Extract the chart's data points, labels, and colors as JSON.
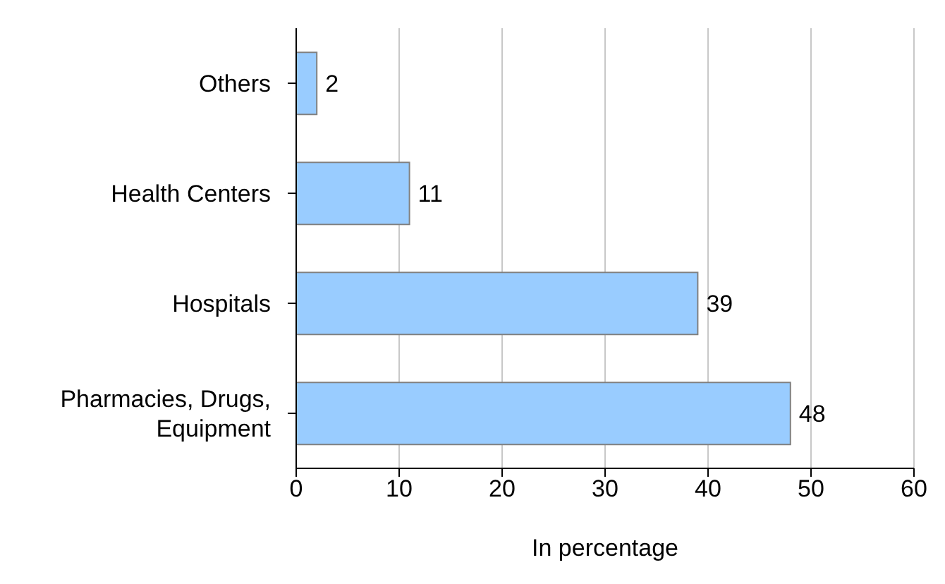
{
  "chart_data": {
    "type": "bar",
    "orientation": "horizontal",
    "categories": [
      "Others",
      "Health Centers",
      "Hospitals",
      "Pharmacies, Drugs, Equipment"
    ],
    "values": [
      2,
      11,
      39,
      48
    ],
    "color": "#99ccff",
    "xlim": [
      0,
      60
    ],
    "xticks": [
      0,
      10,
      20,
      30,
      40,
      50,
      60
    ],
    "xlabel": "In percentage",
    "grid": "x",
    "data_labels": true
  }
}
